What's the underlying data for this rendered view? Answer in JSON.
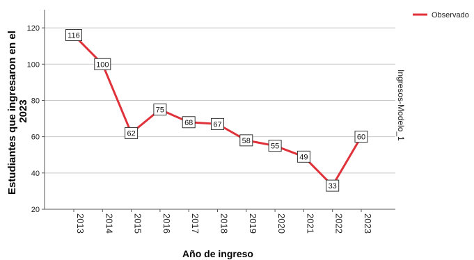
{
  "chart_data": {
    "type": "line",
    "categories": [
      "2013",
      "2014",
      "2015",
      "2016",
      "2017",
      "2018",
      "2019",
      "2020",
      "2021",
      "2022",
      "2023"
    ],
    "series": [
      {
        "name": "Observado",
        "values": [
          116,
          100,
          62,
          75,
          68,
          67,
          58,
          55,
          49,
          33,
          60
        ],
        "color": "#e0323a"
      }
    ],
    "xlabel": "Año de ingreso",
    "ylabel_lines": [
      "Estudiantes que ingresaron en el",
      "2023"
    ],
    "ylim": [
      20,
      130
    ],
    "yticks": [
      20,
      40,
      60,
      80,
      100,
      120
    ],
    "grid": true,
    "legend_position": "top-right",
    "side_label": "Ingresos-Modelo_1",
    "data_labels": true
  }
}
